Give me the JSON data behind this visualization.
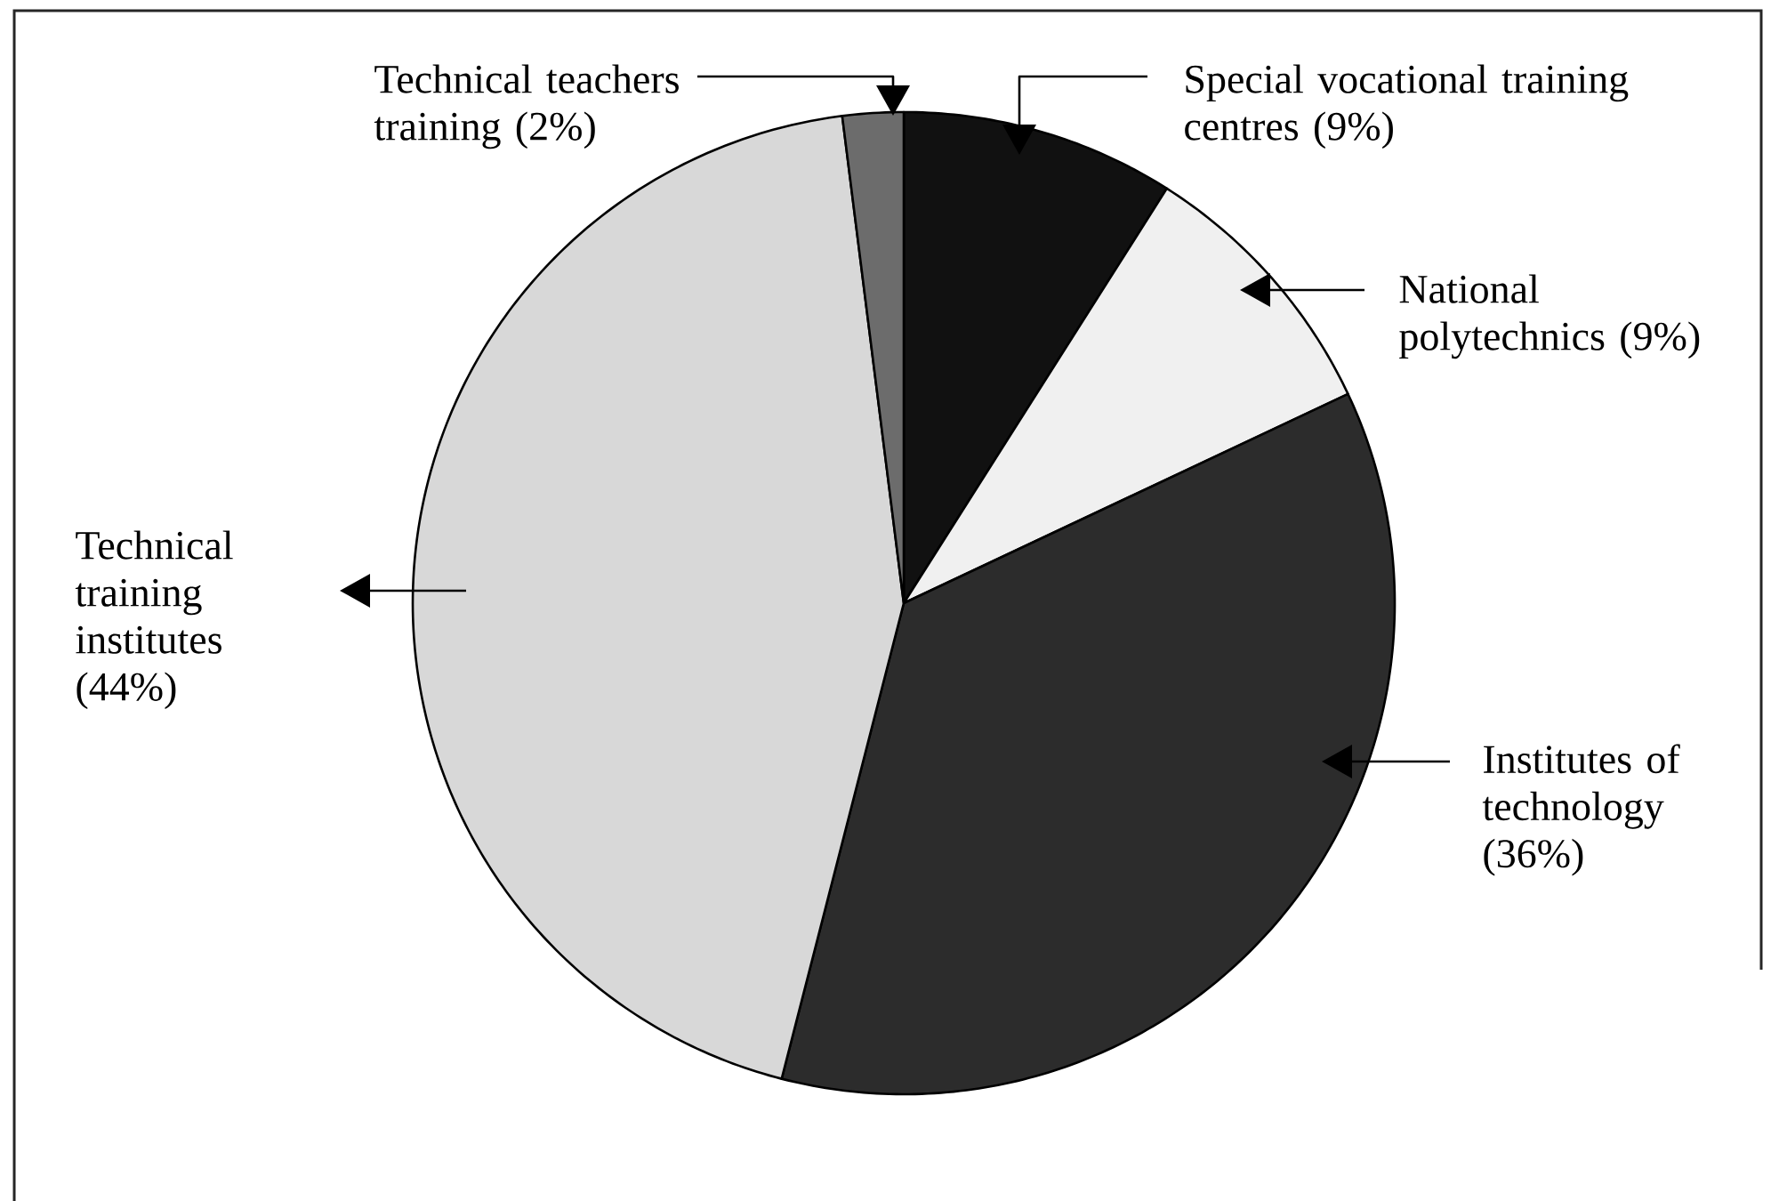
{
  "chart_data": {
    "type": "pie",
    "categories": [
      "Special vocational training centres (9%)",
      "National polytechnics (9%)",
      "Institutes of technology (36%)",
      "Technical training institutes (44%)",
      "Technical teachers training (2%)"
    ],
    "values": [
      9,
      9,
      36,
      44,
      2
    ],
    "colors": [
      "#111111",
      "#f0f0f0",
      "#2c2c2c",
      "#d8d8d8",
      "#6c6c6c"
    ]
  }
}
